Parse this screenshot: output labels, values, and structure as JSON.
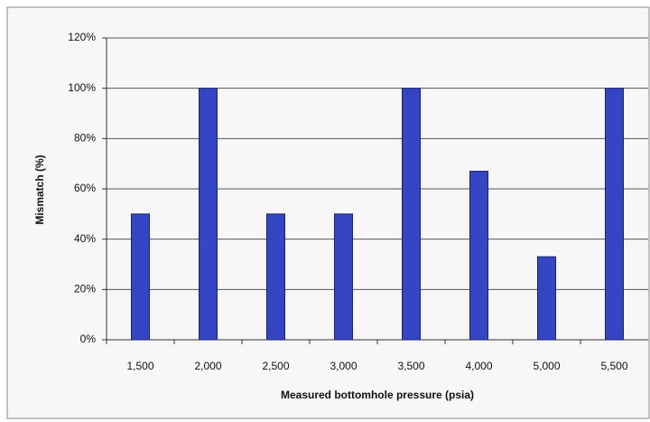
{
  "chart_data": {
    "type": "bar",
    "xlabel": "Measured bottomhole pressure (psia)",
    "ylabel": "Mismatch (%)",
    "categories": [
      "1,500",
      "2,000",
      "2,500",
      "3,000",
      "3,500",
      "4,000",
      "5,000",
      "5,500"
    ],
    "values": [
      50,
      100,
      50,
      50,
      100,
      67,
      33,
      100
    ],
    "color": "#3446c4",
    "ylim": [
      0,
      120
    ],
    "yticks": [
      {
        "value": 0,
        "label": "0%"
      },
      {
        "value": 20,
        "label": "20%"
      },
      {
        "value": 40,
        "label": "40%"
      },
      {
        "value": 60,
        "label": "60%"
      },
      {
        "value": 80,
        "label": "80%"
      },
      {
        "value": 100,
        "label": "100%"
      },
      {
        "value": 120,
        "label": "120%"
      }
    ],
    "grid": true
  }
}
